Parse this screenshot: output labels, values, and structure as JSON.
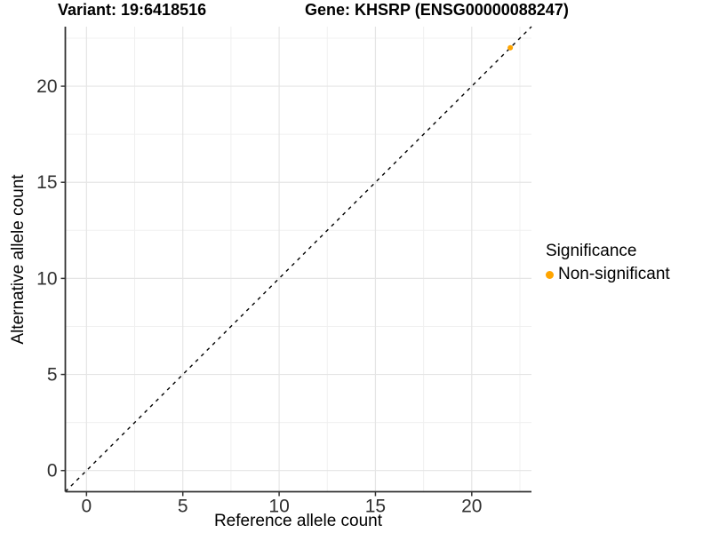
{
  "titles": {
    "variant": "Variant: 19:6418516",
    "gene": "Gene: KHSRP (ENSG00000088247)"
  },
  "chart_data": {
    "type": "scatter",
    "xlabel": "Reference allele count",
    "ylabel": "Alternative allele count",
    "xlim": [
      -1.1,
      23.1
    ],
    "ylim": [
      -1.1,
      23.1
    ],
    "xticks": [
      0,
      5,
      10,
      15,
      20
    ],
    "yticks": [
      0,
      5,
      10,
      15,
      20
    ],
    "xminor": [
      2.5,
      7.5,
      12.5,
      17.5,
      22.5
    ],
    "yminor": [
      2.5,
      7.5,
      12.5,
      17.5,
      22.5
    ],
    "grid": true,
    "abline": {
      "slope": 1,
      "intercept": 0,
      "style": "dashed",
      "color": "#000000"
    },
    "series": [
      {
        "name": "Non-significant",
        "color": "#FFA500",
        "points": [
          [
            22,
            22
          ]
        ]
      }
    ],
    "legend": {
      "title": "Significance",
      "position": "right",
      "items": [
        {
          "label": "Non-significant",
          "color": "#FFA500"
        }
      ]
    }
  },
  "colors": {
    "background": "#ffffff",
    "grid_major": "#e5e5e5",
    "grid_minor": "#f0f0f0",
    "axis_line": "#333333",
    "tick_text": "#303030",
    "point": "#FFA500"
  }
}
